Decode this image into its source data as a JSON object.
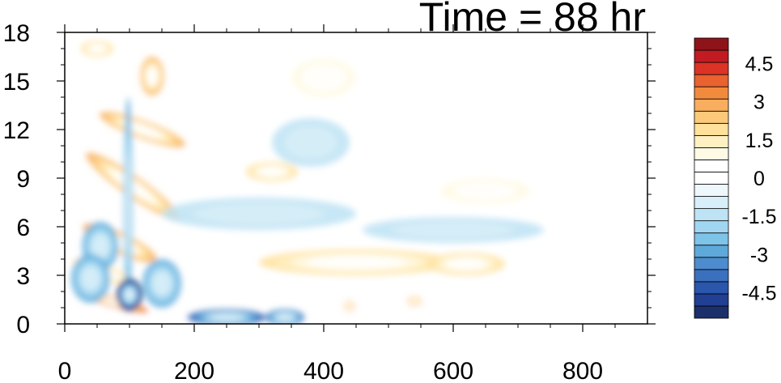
{
  "chart_data": {
    "type": "heatmap",
    "title": "Time = 88 hr",
    "xlabel": "",
    "ylabel": "",
    "xlim": [
      0,
      900
    ],
    "ylim": [
      0,
      18
    ],
    "x_ticks": [
      0,
      200,
      400,
      600,
      800
    ],
    "y_ticks": [
      0,
      3,
      6,
      9,
      12,
      15,
      18
    ],
    "x_tick_labels": [
      "0",
      "200",
      "400",
      "600",
      "800"
    ],
    "y_tick_labels": [
      "0",
      "3",
      "6",
      "9",
      "12",
      "15",
      "18"
    ],
    "colorbar": {
      "levels": [
        -5.5,
        -5,
        -4.5,
        -4,
        -3.5,
        -3,
        -2.5,
        -2,
        -1.5,
        -1,
        -0.5,
        0,
        0.5,
        1,
        1.5,
        2,
        2.5,
        3,
        3.5,
        4,
        4.5,
        5,
        5.5
      ],
      "colors": [
        "#1b2f6b",
        "#213f93",
        "#2a56ab",
        "#3a70be",
        "#4d8ccd",
        "#5ea9da",
        "#7ec3e8",
        "#a0d6f1",
        "#bde3f4",
        "#d8eef8",
        "#eef8fc",
        "#ffffff",
        "#ffffff",
        "#fffae6",
        "#fff0c2",
        "#ffe19b",
        "#fcc97a",
        "#f8ae5e",
        "#f28a3e",
        "#e9622f",
        "#dc3326",
        "#c21b22",
        "#8f1419"
      ],
      "tick_values": [
        4.5,
        3,
        1.5,
        0,
        -1.5,
        -3,
        -4.5
      ],
      "tick_labels": [
        "4.5",
        "3",
        "1.5",
        "0",
        "-1.5",
        "-3",
        "-4.5"
      ]
    },
    "features": [
      {
        "x": 105,
        "y": 8.5,
        "sx": 16,
        "sy": 3.5,
        "rot": -55,
        "value": 3.2
      },
      {
        "x": 120,
        "y": 12.0,
        "sx": 14,
        "sy": 2.8,
        "rot": -70,
        "value": 2.8
      },
      {
        "x": 135,
        "y": 15.3,
        "sx": 18,
        "sy": 1.2,
        "rot": 0,
        "value": 3.0
      },
      {
        "x": 85,
        "y": 5.0,
        "sx": 16,
        "sy": 2.5,
        "rot": -65,
        "value": 3.0
      },
      {
        "x": 60,
        "y": 3.2,
        "sx": 12,
        "sy": 2.0,
        "rot": -70,
        "value": 2.0
      },
      {
        "x": 80,
        "y": 1.3,
        "sx": 8,
        "sy": 2.0,
        "rot": -75,
        "value": 3.8
      },
      {
        "x": 98,
        "y": 7.5,
        "sx": 7,
        "sy": 6.5,
        "rot": 0,
        "value": -2.5
      },
      {
        "x": 55,
        "y": 4.8,
        "sx": 28,
        "sy": 1.5,
        "rot": 0,
        "value": -2.5
      },
      {
        "x": 40,
        "y": 2.8,
        "sx": 30,
        "sy": 1.5,
        "rot": 0,
        "value": -2.5
      },
      {
        "x": 100,
        "y": 1.8,
        "sx": 20,
        "sy": 1.0,
        "rot": 0,
        "value": -5.5
      },
      {
        "x": 150,
        "y": 2.5,
        "sx": 30,
        "sy": 1.5,
        "rot": 0,
        "value": -2.5
      },
      {
        "x": 250,
        "y": 0.4,
        "sx": 60,
        "sy": 0.5,
        "rot": 0,
        "value": -4.0
      },
      {
        "x": 340,
        "y": 0.4,
        "sx": 30,
        "sy": 0.5,
        "rot": 0,
        "value": -3.5
      },
      {
        "x": 450,
        "y": 3.8,
        "sx": 150,
        "sy": 0.8,
        "rot": 0,
        "value": 2.0
      },
      {
        "x": 620,
        "y": 3.7,
        "sx": 60,
        "sy": 0.7,
        "rot": 0,
        "value": 1.8
      },
      {
        "x": 320,
        "y": 9.4,
        "sx": 40,
        "sy": 0.6,
        "rot": 0,
        "value": 2.0
      },
      {
        "x": 380,
        "y": 11.2,
        "sx": 60,
        "sy": 1.5,
        "rot": 0,
        "value": -0.8
      },
      {
        "x": 400,
        "y": 15.2,
        "sx": 50,
        "sy": 1.2,
        "rot": 0,
        "value": 1.2
      },
      {
        "x": 600,
        "y": 5.8,
        "sx": 140,
        "sy": 0.8,
        "rot": 0,
        "value": -1.2
      },
      {
        "x": 650,
        "y": 8.2,
        "sx": 70,
        "sy": 0.8,
        "rot": 0,
        "value": 0.8
      },
      {
        "x": 50,
        "y": 17.0,
        "sx": 25,
        "sy": 0.5,
        "rot": 0,
        "value": 2.0
      },
      {
        "x": 300,
        "y": 6.8,
        "sx": 150,
        "sy": 1.0,
        "rot": 0,
        "value": -1.0
      },
      {
        "x": 440,
        "y": 1.1,
        "sx": 8,
        "sy": 0.3,
        "rot": 0,
        "value": 3.0
      },
      {
        "x": 540,
        "y": 1.4,
        "sx": 10,
        "sy": 0.3,
        "rot": 0,
        "value": 3.0
      }
    ]
  }
}
